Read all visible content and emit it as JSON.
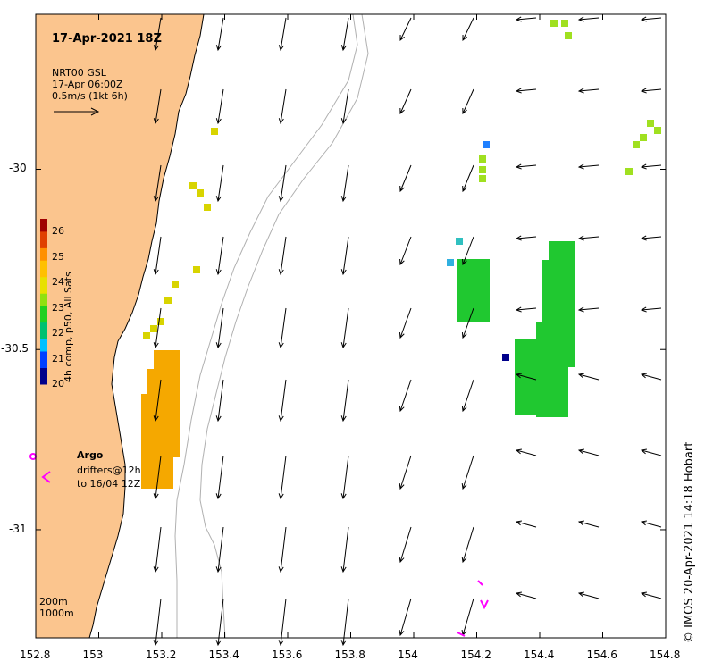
{
  "title": "17-Apr-2021 18Z",
  "current_info": {
    "line1": "NRT00 GSL",
    "line2": "17-Apr 06:00Z",
    "line3": "0.5m/s (1kt 6h)"
  },
  "colorbar": {
    "title": "4h comp, p50, All Sats",
    "ticks": [
      "26",
      "25",
      "24",
      "23",
      "22",
      "21",
      "20"
    ],
    "range": [
      20,
      26.5
    ],
    "colors": [
      "#00008b",
      "#0040ff",
      "#00c0ff",
      "#00c070",
      "#20d020",
      "#90e010",
      "#e8e000",
      "#ffc000",
      "#ff9000",
      "#e04000",
      "#a00000"
    ]
  },
  "axes": {
    "x_ticks": [
      "152.8",
      "153",
      "153.2",
      "153.4",
      "153.6",
      "153.8",
      "154",
      "154.2",
      "154.4",
      "154.6",
      "154.8"
    ],
    "y_ticks": [
      "-30",
      "-30.5",
      "-31"
    ],
    "x_range": [
      152.8,
      154.8
    ],
    "y_range": [
      -31.3,
      -29.57
    ]
  },
  "legend": {
    "argo_label": "Argo",
    "drifters_line1": "drifters@12h",
    "drifters_line2": "to 16/04 12Z"
  },
  "depth_labels": [
    "200m",
    "1000m"
  ],
  "credit": "© IMOS 20-Apr-2021 14:18 Hobart",
  "colors": {
    "land": "#fbc58e",
    "coast": "#000000",
    "isobath": "#b0b0b0",
    "argo": "#ff00ff",
    "arrow": "#000000"
  }
}
